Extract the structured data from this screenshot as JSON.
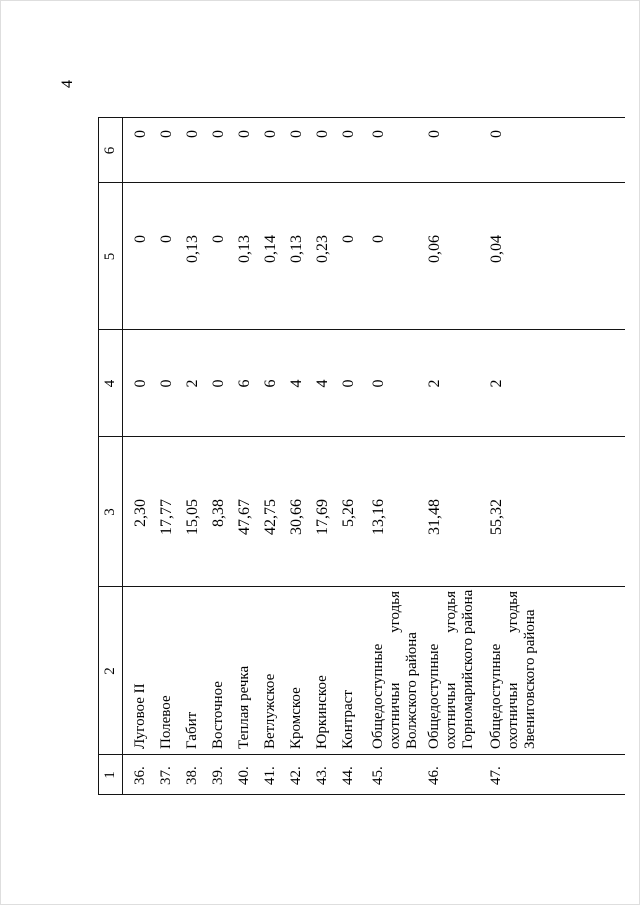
{
  "page": {
    "number": "4"
  },
  "table": {
    "header": [
      "1",
      "2",
      "3",
      "4",
      "5",
      "6"
    ],
    "rows": [
      {
        "num": "36.",
        "lines": [
          [
            "Луговое II"
          ]
        ],
        "c3": "2,30",
        "c4": "0",
        "c5": "0",
        "c6": "0"
      },
      {
        "num": "37.",
        "lines": [
          [
            "Полевое"
          ]
        ],
        "c3": "17,77",
        "c4": "0",
        "c5": "0",
        "c6": "0"
      },
      {
        "num": "38.",
        "lines": [
          [
            "Габит"
          ]
        ],
        "c3": "15,05",
        "c4": "2",
        "c5": "0,13",
        "c6": "0"
      },
      {
        "num": "39.",
        "lines": [
          [
            "Восточное"
          ]
        ],
        "c3": "8,38",
        "c4": "0",
        "c5": "0",
        "c6": "0"
      },
      {
        "num": "40.",
        "lines": [
          [
            "Теплая речка"
          ]
        ],
        "c3": "47,67",
        "c4": "6",
        "c5": "0,13",
        "c6": "0"
      },
      {
        "num": "41.",
        "lines": [
          [
            "Ветлужское"
          ]
        ],
        "c3": "42,75",
        "c4": "6",
        "c5": "0,14",
        "c6": "0"
      },
      {
        "num": "42.",
        "lines": [
          [
            "Кромское"
          ]
        ],
        "c3": "30,66",
        "c4": "4",
        "c5": "0,13",
        "c6": "0"
      },
      {
        "num": "43.",
        "lines": [
          [
            "Юркинское"
          ]
        ],
        "c3": "17,69",
        "c4": "4",
        "c5": "0,23",
        "c6": "0"
      },
      {
        "num": "44.",
        "lines": [
          [
            "Контраст"
          ]
        ],
        "c3": "5,26",
        "c4": "0",
        "c5": "0",
        "c6": "0"
      },
      {
        "num": "45.",
        "lines": [
          [
            "Общедоступные"
          ],
          [
            "охотничьи",
            "угодья"
          ],
          [
            "Волжского района"
          ]
        ],
        "c3": "13,16",
        "c4": "0",
        "c5": "0",
        "c6": "0"
      },
      {
        "num": "46.",
        "lines": [
          [
            "Общедоступные"
          ],
          [
            "охотничьи",
            "угодья"
          ],
          [
            "Горномарийского района"
          ]
        ],
        "c3": "31,48",
        "c4": "2",
        "c5": "0,06",
        "c6": "0"
      },
      {
        "num": "47.",
        "lines": [
          [
            "Общедоступные"
          ],
          [
            "охотничьи",
            "угодья"
          ],
          [
            "Звениговского района"
          ]
        ],
        "c3": "55,32",
        "c4": "2",
        "c5": "0,04",
        "c6": "0"
      }
    ]
  }
}
